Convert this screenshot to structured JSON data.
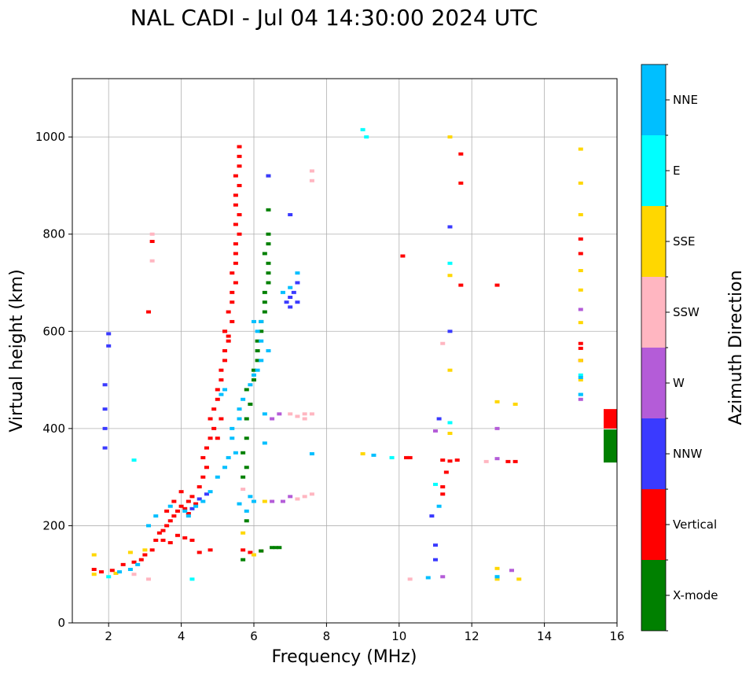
{
  "chart_data": {
    "type": "scatter",
    "title": "NAL CADI - Jul 04 14:30:00 2024 UTC",
    "xlabel": "Frequency (MHz)",
    "ylabel": "Virtual height (km)",
    "xlim": [
      1,
      16
    ],
    "ylim": [
      0,
      1120
    ],
    "xticks": [
      2,
      4,
      6,
      8,
      10,
      12,
      14,
      16
    ],
    "yticks": [
      0,
      200,
      400,
      600,
      800,
      1000
    ],
    "grid": true,
    "colorbar": {
      "label": "Azimuth Direction",
      "categories": [
        {
          "name": "X-mode",
          "color": "#008000"
        },
        {
          "name": "Vertical",
          "color": "#ff0000"
        },
        {
          "name": "NNW",
          "color": "#3a3aff"
        },
        {
          "name": "W",
          "color": "#b45cd8"
        },
        {
          "name": "SSW",
          "color": "#ffb6c1"
        },
        {
          "name": "SSE",
          "color": "#ffd700"
        },
        {
          "name": "E",
          "color": "#00ffff"
        },
        {
          "name": "NNE",
          "color": "#00bfff"
        }
      ]
    },
    "series": [
      {
        "name": "Vertical",
        "points": [
          [
            1.6,
            110
          ],
          [
            1.8,
            105
          ],
          [
            2.1,
            108
          ],
          [
            2.4,
            120
          ],
          [
            2.7,
            125
          ],
          [
            2.9,
            130
          ],
          [
            3.0,
            140
          ],
          [
            3.2,
            150
          ],
          [
            3.3,
            170
          ],
          [
            3.4,
            185
          ],
          [
            3.5,
            190
          ],
          [
            3.6,
            200
          ],
          [
            3.7,
            210
          ],
          [
            3.8,
            220
          ],
          [
            3.9,
            230
          ],
          [
            4.0,
            240
          ],
          [
            4.1,
            235
          ],
          [
            4.2,
            250
          ],
          [
            4.3,
            260
          ],
          [
            3.5,
            170
          ],
          [
            3.7,
            165
          ],
          [
            3.9,
            180
          ],
          [
            4.1,
            175
          ],
          [
            4.3,
            170
          ],
          [
            3.6,
            230
          ],
          [
            3.8,
            250
          ],
          [
            4.0,
            270
          ],
          [
            4.2,
            225
          ],
          [
            4.4,
            245
          ],
          [
            4.5,
            280
          ],
          [
            4.6,
            300
          ],
          [
            4.7,
            320
          ],
          [
            4.6,
            340
          ],
          [
            4.7,
            360
          ],
          [
            4.8,
            380
          ],
          [
            4.9,
            400
          ],
          [
            4.8,
            420
          ],
          [
            4.9,
            440
          ],
          [
            5.0,
            460
          ],
          [
            5.0,
            480
          ],
          [
            5.1,
            500
          ],
          [
            5.1,
            520
          ],
          [
            5.2,
            540
          ],
          [
            5.2,
            560
          ],
          [
            5.3,
            580
          ],
          [
            5.2,
            600
          ],
          [
            5.4,
            620
          ],
          [
            5.3,
            640
          ],
          [
            5.4,
            660
          ],
          [
            5.4,
            680
          ],
          [
            5.5,
            700
          ],
          [
            5.4,
            720
          ],
          [
            5.5,
            740
          ],
          [
            5.5,
            760
          ],
          [
            5.5,
            780
          ],
          [
            5.6,
            800
          ],
          [
            5.5,
            820
          ],
          [
            5.6,
            840
          ],
          [
            5.5,
            860
          ],
          [
            5.5,
            880
          ],
          [
            5.6,
            900
          ],
          [
            5.5,
            920
          ],
          [
            5.6,
            940
          ],
          [
            5.6,
            960
          ],
          [
            5.6,
            980
          ],
          [
            5.2,
            600
          ],
          [
            5.3,
            590
          ],
          [
            5.1,
            420
          ],
          [
            5.0,
            380
          ],
          [
            5.7,
            150
          ],
          [
            5.9,
            145
          ],
          [
            6.2,
            148
          ],
          [
            4.5,
            145
          ],
          [
            4.8,
            150
          ],
          [
            10.2,
            340
          ],
          [
            10.3,
            340
          ],
          [
            10.1,
            755
          ],
          [
            11.2,
            335
          ],
          [
            11.4,
            333
          ],
          [
            11.6,
            335
          ],
          [
            11.2,
            280
          ],
          [
            11.3,
            310
          ],
          [
            11.2,
            265
          ],
          [
            11.7,
            965
          ],
          [
            11.7,
            905
          ],
          [
            11.7,
            695
          ],
          [
            12.7,
            695
          ],
          [
            13.2,
            332
          ],
          [
            13.0,
            332
          ],
          [
            15.0,
            790
          ],
          [
            15.0,
            760
          ],
          [
            15.0,
            575
          ],
          [
            15.0,
            565
          ],
          [
            15.0,
            540
          ],
          [
            3.2,
            785
          ],
          [
            3.1,
            640
          ]
        ]
      },
      {
        "name": "X-mode",
        "points": [
          [
            5.7,
            130
          ],
          [
            5.8,
            210
          ],
          [
            5.7,
            300
          ],
          [
            5.8,
            320
          ],
          [
            5.7,
            350
          ],
          [
            5.8,
            380
          ],
          [
            5.8,
            420
          ],
          [
            5.9,
            450
          ],
          [
            5.8,
            480
          ],
          [
            6.0,
            500
          ],
          [
            6.0,
            520
          ],
          [
            6.1,
            540
          ],
          [
            6.1,
            560
          ],
          [
            6.1,
            580
          ],
          [
            6.2,
            600
          ],
          [
            6.2,
            620
          ],
          [
            6.3,
            640
          ],
          [
            6.3,
            660
          ],
          [
            6.3,
            680
          ],
          [
            6.4,
            700
          ],
          [
            6.4,
            720
          ],
          [
            6.4,
            740
          ],
          [
            6.3,
            760
          ],
          [
            6.4,
            780
          ],
          [
            6.4,
            800
          ],
          [
            6.4,
            850
          ],
          [
            6.4,
            920
          ],
          [
            6.2,
            148
          ],
          [
            6.5,
            155
          ],
          [
            6.6,
            155
          ],
          [
            6.7,
            155
          ]
        ]
      },
      {
        "name": "NNW",
        "points": [
          [
            1.9,
            490
          ],
          [
            1.9,
            440
          ],
          [
            1.9,
            400
          ],
          [
            1.9,
            360
          ],
          [
            2.0,
            595
          ],
          [
            2.0,
            570
          ],
          [
            4.3,
            235
          ],
          [
            4.5,
            255
          ],
          [
            4.7,
            265
          ],
          [
            6.9,
            660
          ],
          [
            7.0,
            670
          ],
          [
            7.1,
            680
          ],
          [
            7.2,
            660
          ],
          [
            7.0,
            650
          ],
          [
            7.2,
            700
          ],
          [
            7.0,
            840
          ],
          [
            6.4,
            920
          ],
          [
            11.1,
            420
          ],
          [
            11.4,
            815
          ],
          [
            11.4,
            600
          ],
          [
            11.0,
            160
          ],
          [
            11.0,
            130
          ],
          [
            10.9,
            220
          ]
        ]
      },
      {
        "name": "W",
        "points": [
          [
            6.5,
            420
          ],
          [
            6.7,
            430
          ],
          [
            6.5,
            250
          ],
          [
            6.8,
            250
          ],
          [
            7.0,
            260
          ],
          [
            11.0,
            395
          ],
          [
            12.7,
            400
          ],
          [
            12.7,
            338
          ],
          [
            13.1,
            108
          ],
          [
            15.0,
            460
          ],
          [
            15.0,
            645
          ],
          [
            11.2,
            95
          ]
        ]
      },
      {
        "name": "SSW",
        "points": [
          [
            7.0,
            430
          ],
          [
            7.2,
            425
          ],
          [
            7.4,
            430
          ],
          [
            7.6,
            430
          ],
          [
            7.4,
            420
          ],
          [
            7.2,
            255
          ],
          [
            7.4,
            260
          ],
          [
            7.6,
            265
          ],
          [
            5.7,
            275
          ],
          [
            7.6,
            930
          ],
          [
            7.6,
            910
          ],
          [
            3.2,
            800
          ],
          [
            3.2,
            745
          ],
          [
            11.2,
            575
          ],
          [
            10.3,
            90
          ],
          [
            12.4,
            332
          ],
          [
            2.7,
            100
          ],
          [
            3.1,
            90
          ]
        ]
      },
      {
        "name": "SSE",
        "points": [
          [
            1.6,
            100
          ],
          [
            1.6,
            140
          ],
          [
            2.2,
            102
          ],
          [
            2.6,
            145
          ],
          [
            3.0,
            150
          ],
          [
            5.7,
            185
          ],
          [
            6.0,
            140
          ],
          [
            6.3,
            250
          ],
          [
            11.4,
            390
          ],
          [
            11.4,
            715
          ],
          [
            11.4,
            520
          ],
          [
            12.7,
            455
          ],
          [
            13.2,
            450
          ],
          [
            12.7,
            112
          ],
          [
            12.7,
            90
          ],
          [
            13.3,
            90
          ],
          [
            15.0,
            975
          ],
          [
            15.0,
            905
          ],
          [
            15.0,
            840
          ],
          [
            15.0,
            725
          ],
          [
            15.0,
            685
          ],
          [
            15.0,
            618
          ],
          [
            15.0,
            540
          ],
          [
            15.0,
            500
          ],
          [
            9.0,
            348
          ],
          [
            11.4,
            1000
          ]
        ]
      },
      {
        "name": "E",
        "points": [
          [
            2.7,
            335
          ],
          [
            9.0,
            1015
          ],
          [
            9.1,
            1000
          ],
          [
            9.8,
            340
          ],
          [
            11.4,
            740
          ],
          [
            11.4,
            412
          ],
          [
            12.7,
            95
          ],
          [
            15.0,
            510
          ],
          [
            15.0,
            470
          ],
          [
            4.3,
            90
          ],
          [
            2.0,
            95
          ],
          [
            11.0,
            285
          ]
        ]
      },
      {
        "name": "NNE",
        "points": [
          [
            3.1,
            200
          ],
          [
            3.3,
            220
          ],
          [
            3.7,
            240
          ],
          [
            4.1,
            230
          ],
          [
            4.2,
            220
          ],
          [
            4.4,
            240
          ],
          [
            4.6,
            250
          ],
          [
            4.8,
            270
          ],
          [
            5.0,
            300
          ],
          [
            5.2,
            320
          ],
          [
            5.3,
            340
          ],
          [
            5.5,
            350
          ],
          [
            5.4,
            380
          ],
          [
            5.4,
            400
          ],
          [
            5.6,
            420
          ],
          [
            5.6,
            440
          ],
          [
            5.7,
            460
          ],
          [
            5.1,
            470
          ],
          [
            5.2,
            480
          ],
          [
            5.9,
            490
          ],
          [
            6.0,
            510
          ],
          [
            6.1,
            520
          ],
          [
            6.2,
            540
          ],
          [
            6.4,
            560
          ],
          [
            6.2,
            580
          ],
          [
            6.1,
            600
          ],
          [
            6.2,
            620
          ],
          [
            6.0,
            620
          ],
          [
            6.8,
            680
          ],
          [
            7.0,
            690
          ],
          [
            7.2,
            720
          ],
          [
            5.9,
            260
          ],
          [
            6.0,
            250
          ],
          [
            5.6,
            245
          ],
          [
            5.8,
            230
          ],
          [
            6.3,
            430
          ],
          [
            6.3,
            370
          ],
          [
            7.6,
            348
          ],
          [
            2.3,
            105
          ],
          [
            2.6,
            110
          ],
          [
            2.8,
            120
          ],
          [
            9.3,
            345
          ],
          [
            10.8,
            93
          ],
          [
            11.1,
            240
          ],
          [
            12.7,
            95
          ],
          [
            15.0,
            470
          ],
          [
            15.0,
            505
          ]
        ]
      }
    ],
    "side_bars": [
      {
        "name": "Vertical",
        "y_range": [
          400,
          440
        ]
      },
      {
        "name": "X-mode",
        "y_range": [
          330,
          398
        ]
      }
    ]
  }
}
